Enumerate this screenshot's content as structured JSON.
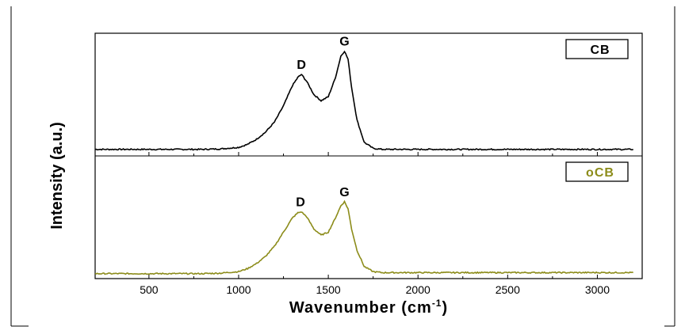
{
  "chart_data": {
    "type": "line",
    "xlabel": "Wavenumber (cm",
    "xlabel_sup": "-1",
    "xlabel_close": ")",
    "ylabel": "Intensity (a.u.)",
    "xlim": [
      200,
      3250
    ],
    "xticks": [
      500,
      1000,
      1500,
      2000,
      2500,
      3000
    ],
    "xtick_labels": [
      "500",
      "1000",
      "1500",
      "2000",
      "2500",
      "3000"
    ],
    "y_tick_labels": "none",
    "panels": [
      {
        "name": "CB",
        "color": "#000000",
        "label_color": "#000000",
        "legend_position": "top-right",
        "peaks": [
          {
            "label": "D",
            "x": 1350,
            "y": 0.75
          },
          {
            "label": "G",
            "x": 1590,
            "y": 0.98
          }
        ],
        "x": [
          200,
          400,
          600,
          800,
          900,
          1000,
          1050,
          1100,
          1150,
          1200,
          1250,
          1300,
          1330,
          1350,
          1380,
          1420,
          1460,
          1500,
          1540,
          1570,
          1590,
          1610,
          1630,
          1660,
          1700,
          1750,
          1800,
          2000,
          2500,
          3000,
          3200
        ],
        "y": [
          0.01,
          0.01,
          0.01,
          0.01,
          0.015,
          0.03,
          0.06,
          0.11,
          0.18,
          0.28,
          0.44,
          0.64,
          0.72,
          0.75,
          0.68,
          0.55,
          0.49,
          0.53,
          0.72,
          0.93,
          0.98,
          0.9,
          0.62,
          0.3,
          0.08,
          0.02,
          0.01,
          0.01,
          0.01,
          0.01,
          0.01
        ]
      },
      {
        "name": "oCB",
        "color": "#8c8c1a",
        "label_color": "#8c8c1a",
        "legend_position": "top-right",
        "peaks": [
          {
            "label": "D",
            "x": 1345,
            "y": 0.62
          },
          {
            "label": "G",
            "x": 1590,
            "y": 0.72
          }
        ],
        "x": [
          200,
          400,
          600,
          800,
          900,
          1000,
          1050,
          1100,
          1150,
          1200,
          1250,
          1300,
          1330,
          1350,
          1380,
          1420,
          1460,
          1500,
          1540,
          1570,
          1590,
          1610,
          1630,
          1660,
          1700,
          1750,
          1800,
          2000,
          2500,
          3000,
          3200
        ],
        "y": [
          0.01,
          0.01,
          0.01,
          0.01,
          0.015,
          0.03,
          0.06,
          0.11,
          0.18,
          0.28,
          0.42,
          0.56,
          0.61,
          0.62,
          0.57,
          0.45,
          0.39,
          0.42,
          0.56,
          0.68,
          0.72,
          0.65,
          0.45,
          0.24,
          0.08,
          0.03,
          0.02,
          0.02,
          0.02,
          0.02,
          0.02
        ]
      }
    ]
  }
}
